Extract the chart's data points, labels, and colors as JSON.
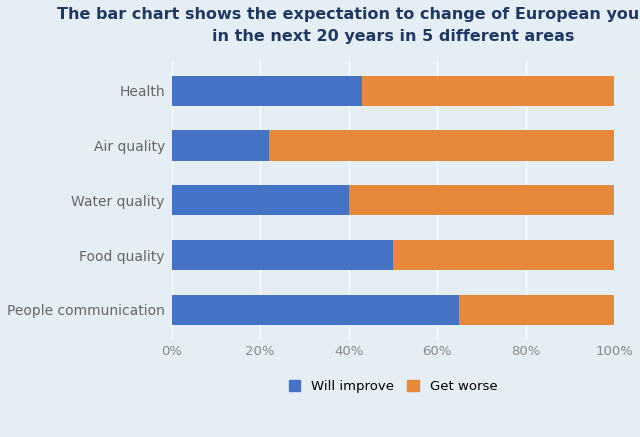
{
  "title_line1": "The bar chart shows the expectation to change of European young people",
  "title_line2": "in the next 20 years in 5 different areas",
  "categories": [
    "Health",
    "Air quality",
    "Water quality",
    "Food quality",
    "People communication"
  ],
  "will_improve": [
    43,
    22,
    40,
    50,
    65
  ],
  "get_worse": [
    57,
    78,
    60,
    50,
    35
  ],
  "color_improve": "#4472C4",
  "color_worse": "#E8883A",
  "background_color": "#E6EEF5",
  "title_color": "#1F3864",
  "label_color": "#666666",
  "tick_color": "#888888",
  "xlim": [
    0,
    100
  ],
  "xticks": [
    0,
    20,
    40,
    60,
    80,
    100
  ],
  "xtick_labels": [
    "0%",
    "20%",
    "40%",
    "60%",
    "80%",
    "100%"
  ],
  "legend_improve": "Will improve",
  "legend_worse": "Get worse",
  "bar_height": 0.55,
  "title_fontsize": 11.5,
  "tick_fontsize": 9.5,
  "label_fontsize": 10
}
